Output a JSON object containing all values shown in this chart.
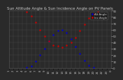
{
  "title": "Sun Altitude Angle & Sun Incidence Angle on PV Panels",
  "legend_alt": "Alt Angle",
  "legend_inc": "Inc Angle",
  "blue_color": "#0000cc",
  "red_color": "#cc0000",
  "fig_bg": "#2a2a2a",
  "plot_bg": "#2a2a2a",
  "grid_color": "#555555",
  "text_color": "#cccccc",
  "ylim": [
    0,
    90
  ],
  "yticks": [
    0,
    10,
    20,
    30,
    40,
    50,
    60,
    70,
    80,
    90
  ],
  "xlim": [
    0,
    23
  ],
  "xtick_labels": [
    "1",
    "2",
    "3",
    "4",
    "5",
    "6",
    "7",
    "8",
    "9",
    "10",
    "11",
    "12",
    "13",
    "14",
    "15",
    "16",
    "17",
    "18",
    "19",
    "20",
    "21",
    "22",
    "23",
    "0"
  ],
  "alt_x": [
    4,
    5,
    6,
    7,
    8,
    9,
    10,
    11,
    12,
    13,
    14,
    15,
    16,
    17,
    18,
    19
  ],
  "alt_y": [
    1,
    3,
    10,
    20,
    30,
    42,
    52,
    58,
    60,
    55,
    45,
    33,
    22,
    12,
    4,
    1
  ],
  "inc_x": [
    4,
    5,
    6,
    7,
    8,
    9,
    10,
    11,
    12,
    13,
    14,
    15,
    16,
    17,
    18,
    19,
    20
  ],
  "inc_y": [
    88,
    82,
    72,
    60,
    50,
    42,
    36,
    34,
    32,
    36,
    40,
    48,
    58,
    68,
    78,
    85,
    88
  ],
  "title_fontsize": 4.0,
  "tick_fontsize": 2.8,
  "legend_fontsize": 2.8
}
